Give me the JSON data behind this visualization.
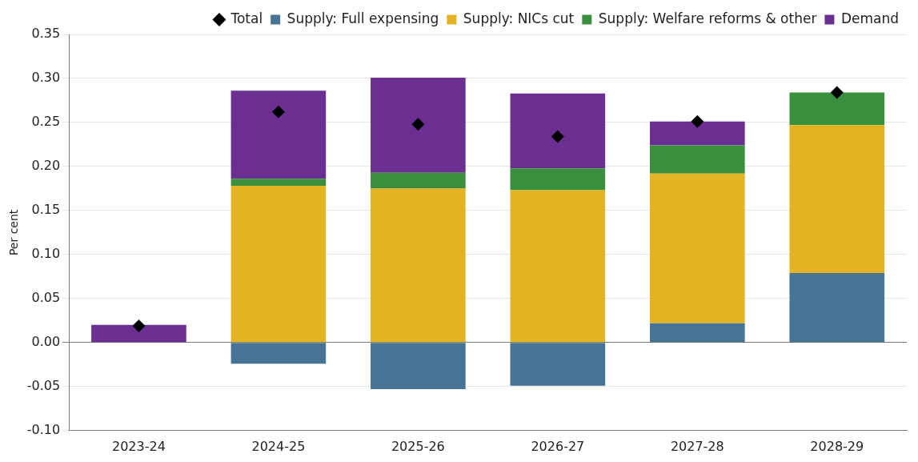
{
  "chart_data": {
    "type": "bar",
    "stacked": true,
    "ylabel": "Per cent",
    "categories": [
      "2023-24",
      "2024-25",
      "2025-26",
      "2026-27",
      "2027-28",
      "2028-29"
    ],
    "series": [
      {
        "name": "Supply: Full expensing",
        "color": "#477394",
        "values": [
          0,
          -0.024,
          -0.053,
          -0.049,
          0.022,
          0.079
        ]
      },
      {
        "name": "Supply: NICs cut",
        "color": "#e3b323",
        "values": [
          0,
          0.178,
          0.175,
          0.173,
          0.17,
          0.168
        ]
      },
      {
        "name": "Supply: Welfare reforms & other",
        "color": "#3a8f3f",
        "values": [
          0,
          0.008,
          0.018,
          0.025,
          0.032,
          0.037
        ]
      },
      {
        "name": "Demand",
        "color": "#6a2f91",
        "values": [
          0.02,
          0.1,
          0.108,
          0.085,
          0.027,
          0
        ]
      },
      {
        "name": "Total",
        "type": "scatter",
        "marker": "diamond",
        "color": "#000000",
        "x": [
          "2023-24",
          "2024-25",
          "2025-26",
          "2026-27",
          "2027-28",
          "2028-29"
        ],
        "values": [
          0.019,
          0.262,
          0.248,
          0.234,
          0.251,
          0.284
        ]
      }
    ],
    "ylim": [
      -0.1,
      0.35
    ],
    "yticks": [
      {
        "value": -0.1,
        "label": "-0.10"
      },
      -0.05,
      {
        "value": 0,
        "label": "0.00"
      },
      0.05,
      {
        "value": 0.1,
        "label": "0.10"
      },
      0.15,
      {
        "value": 0.2,
        "label": "0.20"
      },
      0.25,
      {
        "value": 0.3,
        "label": "0.30"
      },
      0.35
    ],
    "grid": "y",
    "legend": "top"
  }
}
